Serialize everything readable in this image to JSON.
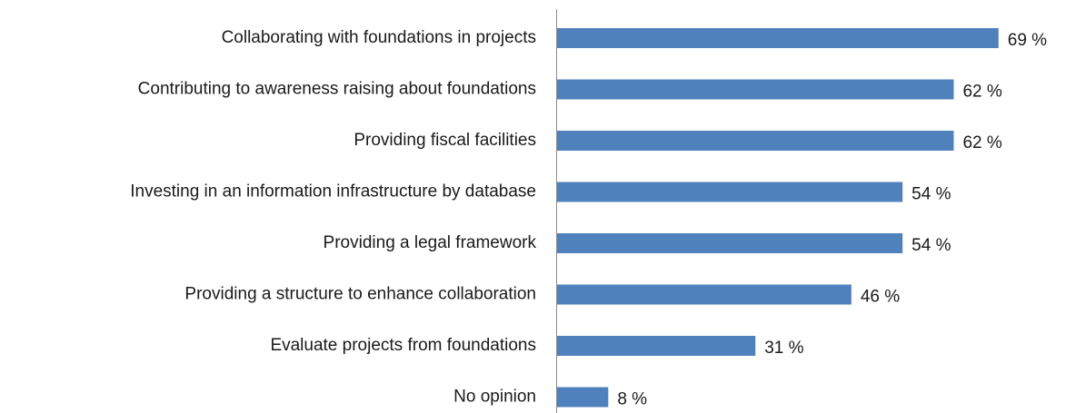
{
  "chart_data": {
    "type": "barh",
    "categories": [
      "Collaborating with foundations in projects",
      "Contributing to awareness raising about foundations",
      "Providing fiscal facilities",
      "Investing in an information infrastructure by database",
      "Providing a legal framework",
      "Providing a structure to enhance collaboration",
      "Evaluate projects from foundations",
      "No opinion"
    ],
    "values": [
      69,
      62,
      62,
      54,
      54,
      46,
      31,
      8
    ],
    "value_labels": [
      "69 %",
      "62 %",
      "62 %",
      "54 %",
      "54 %",
      "46 %",
      "31 %",
      "8 %"
    ],
    "color": "#4f81bd"
  }
}
